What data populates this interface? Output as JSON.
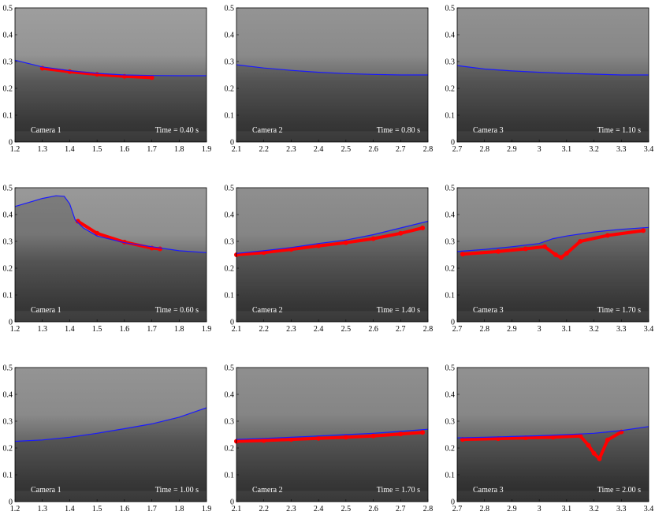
{
  "chart_data": [
    {
      "type": "line",
      "camera_label": "Camera 1",
      "time_label": "Time = 0.40 s",
      "xlim": [
        1.2,
        1.9
      ],
      "ylim": [
        0,
        0.5
      ],
      "xticks": [
        "1.2",
        "1.3",
        "1.4",
        "1.5",
        "1.6",
        "1.7",
        "1.8",
        "1.9"
      ],
      "yticks": [
        "0",
        "0.1",
        "0.2",
        "0.3",
        "0.4",
        "0.5"
      ],
      "surface": {
        "x": [
          1.2,
          1.3,
          1.4,
          1.5,
          1.6,
          1.7,
          1.8,
          1.9
        ],
        "y": [
          0.305,
          0.28,
          0.266,
          0.256,
          0.25,
          0.248,
          0.247,
          0.247
        ]
      },
      "detections": {
        "x": [
          1.3,
          1.4,
          1.5,
          1.6,
          1.7
        ],
        "y": [
          0.275,
          0.262,
          0.252,
          0.245,
          0.24
        ]
      },
      "intensity": {
        "upper": 0.62,
        "mid": 0.42,
        "lower": 0.27
      }
    },
    {
      "type": "line",
      "camera_label": "Camera 2",
      "time_label": "Time = 0.80 s",
      "xlim": [
        2.1,
        2.8
      ],
      "ylim": [
        0,
        0.5
      ],
      "xticks": [
        "2.1",
        "2.2",
        "2.3",
        "2.4",
        "2.5",
        "2.6",
        "2.7",
        "2.8"
      ],
      "yticks": [
        "0",
        "0.1",
        "0.2",
        "0.3",
        "0.4",
        "0.5"
      ],
      "surface": {
        "x": [
          2.1,
          2.2,
          2.3,
          2.4,
          2.5,
          2.6,
          2.7,
          2.8
        ],
        "y": [
          0.288,
          0.276,
          0.267,
          0.26,
          0.255,
          0.252,
          0.25,
          0.25
        ]
      },
      "detections": {
        "x": [],
        "y": []
      },
      "intensity": {
        "upper": 0.58,
        "mid": 0.4,
        "lower": 0.27
      }
    },
    {
      "type": "line",
      "camera_label": "Camera 3",
      "time_label": "Time = 1.10 s",
      "xlim": [
        2.7,
        3.4
      ],
      "ylim": [
        0,
        0.5
      ],
      "xticks": [
        "2.7",
        "2.8",
        "2.9",
        "3",
        "3.1",
        "3.2",
        "3.3",
        "3.4"
      ],
      "yticks": [
        "0",
        "0.1",
        "0.2",
        "0.3",
        "0.4",
        "0.5"
      ],
      "surface": {
        "x": [
          2.7,
          2.8,
          2.9,
          3.0,
          3.1,
          3.2,
          3.3,
          3.4
        ],
        "y": [
          0.285,
          0.272,
          0.265,
          0.26,
          0.256,
          0.253,
          0.25,
          0.25
        ]
      },
      "detections": {
        "x": [],
        "y": []
      },
      "intensity": {
        "upper": 0.57,
        "mid": 0.4,
        "lower": 0.27
      }
    },
    {
      "type": "line",
      "camera_label": "Camera 1",
      "time_label": "Time = 0.60 s",
      "xlim": [
        1.2,
        1.9
      ],
      "ylim": [
        0,
        0.5
      ],
      "xticks": [
        "1.2",
        "1.3",
        "1.4",
        "1.5",
        "1.6",
        "1.7",
        "1.8",
        "1.9"
      ],
      "yticks": [
        "0",
        "0.1",
        "0.2",
        "0.3",
        "0.4",
        "0.5"
      ],
      "surface": {
        "x": [
          1.2,
          1.25,
          1.3,
          1.35,
          1.38,
          1.4,
          1.42,
          1.45,
          1.5,
          1.6,
          1.7,
          1.8,
          1.9
        ],
        "y": [
          0.43,
          0.445,
          0.46,
          0.47,
          0.468,
          0.44,
          0.38,
          0.35,
          0.32,
          0.295,
          0.28,
          0.265,
          0.258
        ]
      },
      "detections": {
        "x": [
          1.43,
          1.5,
          1.6,
          1.7,
          1.73
        ],
        "y": [
          0.375,
          0.33,
          0.297,
          0.275,
          0.272
        ]
      },
      "intensity": {
        "upper": 0.6,
        "mid": 0.4,
        "lower": 0.28
      }
    },
    {
      "type": "line",
      "camera_label": "Camera 2",
      "time_label": "Time = 1.40 s",
      "xlim": [
        2.1,
        2.8
      ],
      "ylim": [
        0,
        0.5
      ],
      "xticks": [
        "2.1",
        "2.2",
        "2.3",
        "2.4",
        "2.5",
        "2.6",
        "2.7",
        "2.8"
      ],
      "yticks": [
        "0",
        "0.1",
        "0.2",
        "0.3",
        "0.4",
        "0.5"
      ],
      "surface": {
        "x": [
          2.1,
          2.2,
          2.3,
          2.4,
          2.5,
          2.6,
          2.7,
          2.8
        ],
        "y": [
          0.255,
          0.265,
          0.277,
          0.292,
          0.305,
          0.325,
          0.35,
          0.375
        ]
      },
      "detections": {
        "x": [
          2.1,
          2.2,
          2.3,
          2.4,
          2.5,
          2.6,
          2.7,
          2.78
        ],
        "y": [
          0.25,
          0.258,
          0.27,
          0.283,
          0.295,
          0.31,
          0.33,
          0.35
        ]
      },
      "intensity": {
        "upper": 0.56,
        "mid": 0.4,
        "lower": 0.27
      }
    },
    {
      "type": "line",
      "camera_label": "Camera 3",
      "time_label": "Time = 1.70 s",
      "xlim": [
        2.7,
        3.4
      ],
      "ylim": [
        0,
        0.5
      ],
      "xticks": [
        "2.7",
        "2.8",
        "2.9",
        "3",
        "3.1",
        "3.2",
        "3.3",
        "3.4"
      ],
      "yticks": [
        "0",
        "0.1",
        "0.2",
        "0.3",
        "0.4",
        "0.5"
      ],
      "surface": {
        "x": [
          2.7,
          2.8,
          2.9,
          3.0,
          3.05,
          3.1,
          3.2,
          3.3,
          3.4
        ],
        "y": [
          0.262,
          0.27,
          0.28,
          0.292,
          0.31,
          0.32,
          0.335,
          0.345,
          0.352
        ]
      },
      "detections": {
        "x": [
          2.72,
          2.85,
          2.95,
          3.02,
          3.06,
          3.08,
          3.1,
          3.15,
          3.25,
          3.38
        ],
        "y": [
          0.252,
          0.262,
          0.272,
          0.28,
          0.25,
          0.24,
          0.255,
          0.3,
          0.322,
          0.34
        ]
      },
      "intensity": {
        "upper": 0.56,
        "mid": 0.4,
        "lower": 0.27
      }
    },
    {
      "type": "line",
      "camera_label": "Camera 1",
      "time_label": "Time = 1.00 s",
      "xlim": [
        1.2,
        1.9
      ],
      "ylim": [
        0,
        0.5
      ],
      "xticks": [
        "1.2",
        "1.3",
        "1.4",
        "1.5",
        "1.6",
        "1.7",
        "1.8",
        "1.9"
      ],
      "yticks": [
        "0",
        "0.1",
        "0.2",
        "0.3",
        "0.4",
        "0.5"
      ],
      "surface": {
        "x": [
          1.2,
          1.3,
          1.4,
          1.5,
          1.6,
          1.7,
          1.8,
          1.9
        ],
        "y": [
          0.225,
          0.23,
          0.24,
          0.255,
          0.272,
          0.29,
          0.315,
          0.35
        ]
      },
      "detections": {
        "x": [],
        "y": []
      },
      "intensity": {
        "upper": 0.58,
        "mid": 0.4,
        "lower": 0.27
      }
    },
    {
      "type": "line",
      "camera_label": "Camera 2",
      "time_label": "Time = 1.70 s",
      "xlim": [
        2.1,
        2.8
      ],
      "ylim": [
        0,
        0.5
      ],
      "xticks": [
        "2.1",
        "2.2",
        "2.3",
        "2.4",
        "2.5",
        "2.6",
        "2.7",
        "2.8"
      ],
      "yticks": [
        "0",
        "0.1",
        "0.2",
        "0.3",
        "0.4",
        "0.5"
      ],
      "surface": {
        "x": [
          2.1,
          2.2,
          2.3,
          2.4,
          2.5,
          2.6,
          2.7,
          2.8
        ],
        "y": [
          0.232,
          0.236,
          0.24,
          0.245,
          0.25,
          0.255,
          0.262,
          0.27
        ]
      },
      "detections": {
        "x": [
          2.1,
          2.2,
          2.3,
          2.4,
          2.5,
          2.6,
          2.7,
          2.78
        ],
        "y": [
          0.225,
          0.228,
          0.232,
          0.236,
          0.24,
          0.245,
          0.252,
          0.258
        ]
      },
      "intensity": {
        "upper": 0.56,
        "mid": 0.4,
        "lower": 0.27
      }
    },
    {
      "type": "line",
      "camera_label": "Camera 3",
      "time_label": "Time = 2.00 s",
      "xlim": [
        2.7,
        3.4
      ],
      "ylim": [
        0,
        0.5
      ],
      "xticks": [
        "2.7",
        "2.8",
        "2.9",
        "3",
        "3.1",
        "3.2",
        "3.3",
        "3.4"
      ],
      "yticks": [
        "0",
        "0.1",
        "0.2",
        "0.3",
        "0.4",
        "0.5"
      ],
      "surface": {
        "x": [
          2.7,
          2.8,
          2.9,
          3.0,
          3.1,
          3.2,
          3.3,
          3.4
        ],
        "y": [
          0.238,
          0.24,
          0.243,
          0.246,
          0.25,
          0.255,
          0.265,
          0.28
        ]
      },
      "detections": {
        "x": [
          2.72,
          2.85,
          2.95,
          3.05,
          3.15,
          3.18,
          3.2,
          3.22,
          3.25,
          3.3
        ],
        "y": [
          0.232,
          0.235,
          0.238,
          0.24,
          0.245,
          0.21,
          0.18,
          0.16,
          0.23,
          0.26
        ]
      },
      "intensity": {
        "upper": 0.57,
        "mid": 0.4,
        "lower": 0.25
      }
    }
  ]
}
